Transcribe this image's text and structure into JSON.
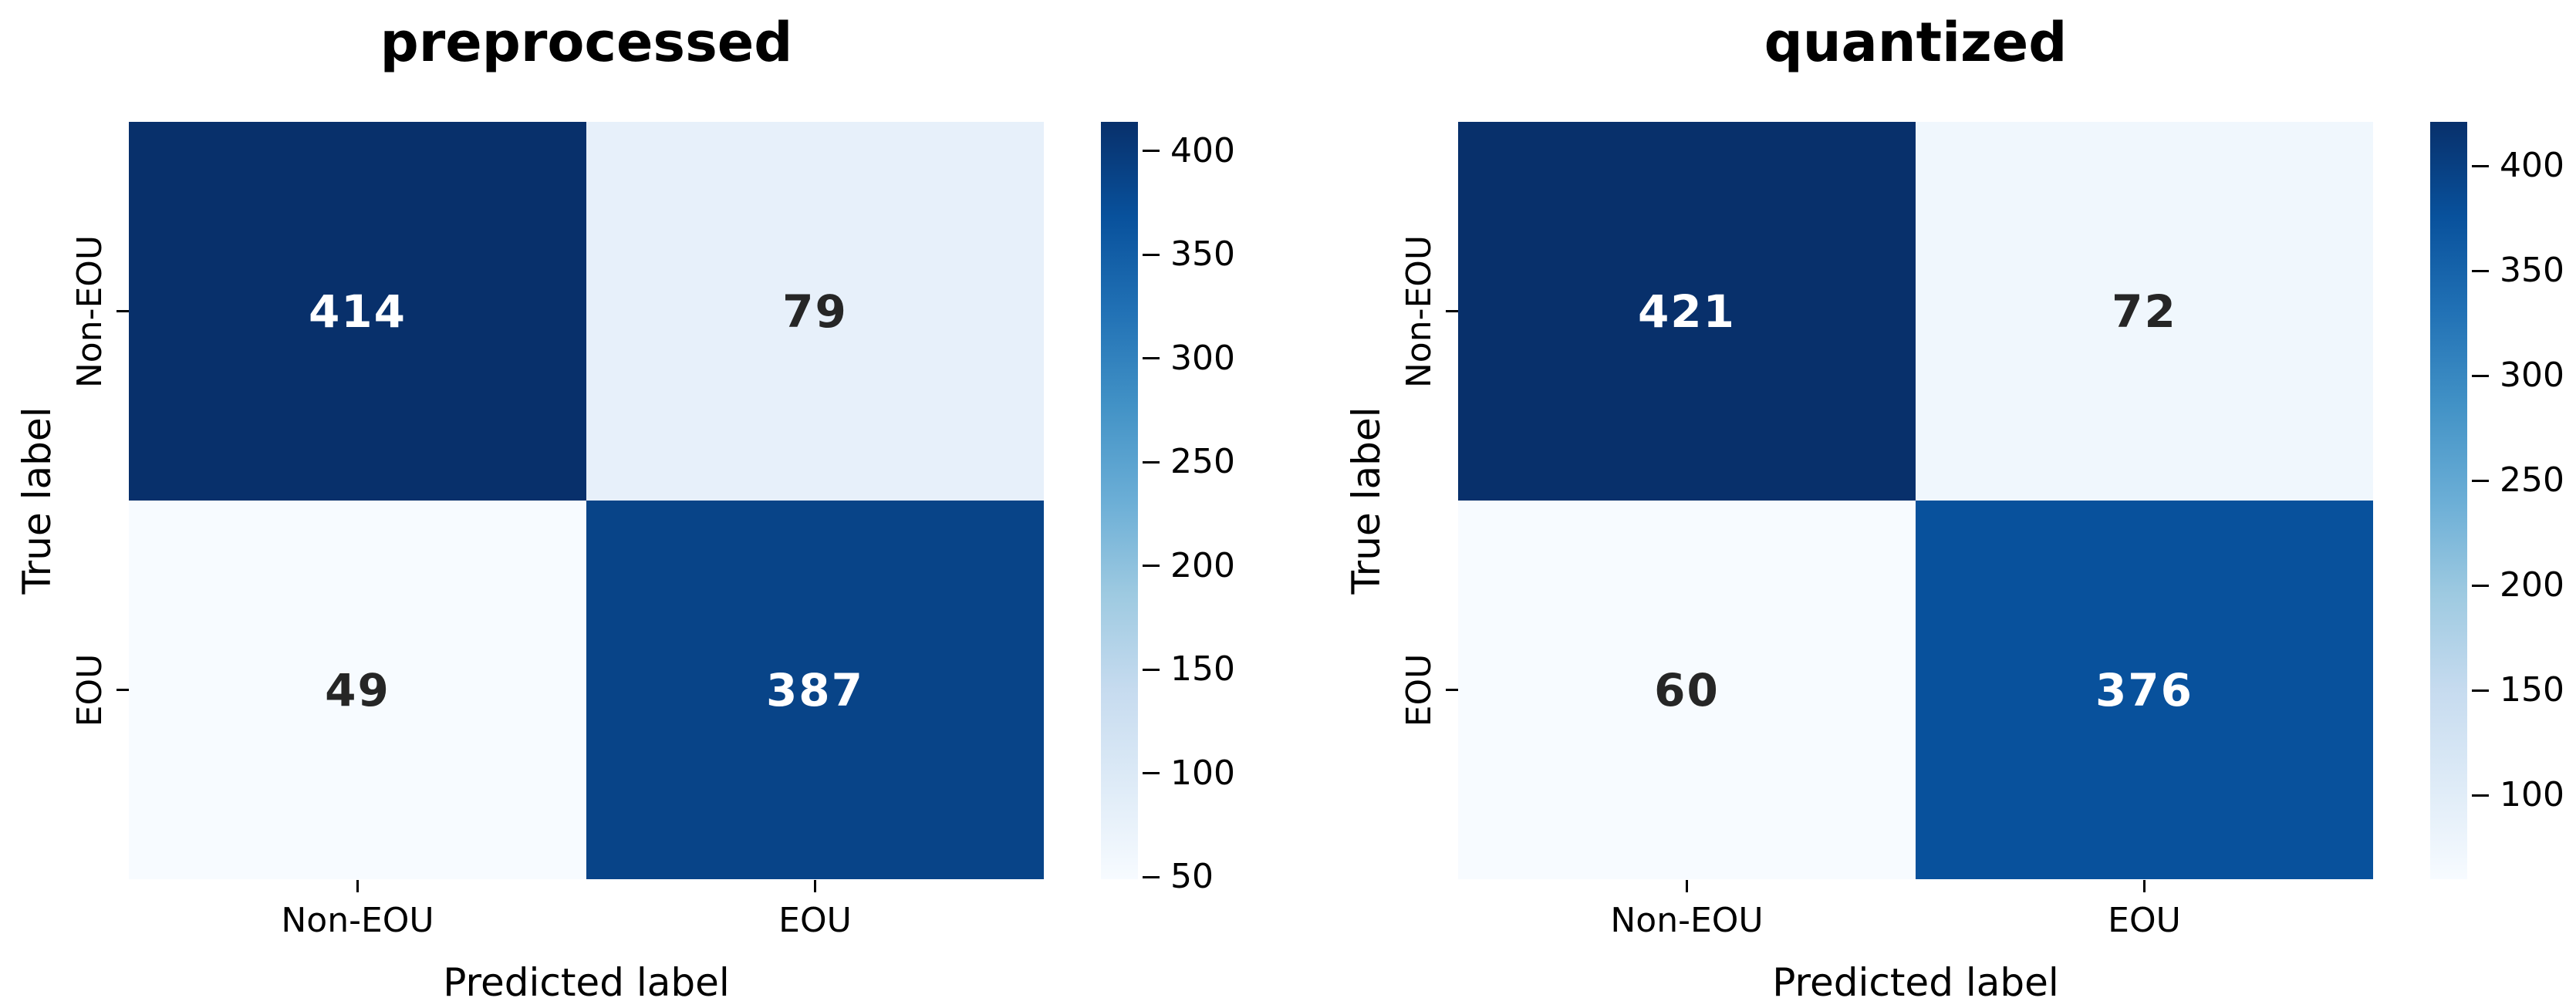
{
  "figure": {
    "background": "#ffffff",
    "text_color": "#000000"
  },
  "chart_data": [
    {
      "type": "heatmap",
      "title": "preprocessed",
      "xlabel": "Predicted label",
      "ylabel": "True label",
      "x_tick_labels": [
        "Non-EOU",
        "EOU"
      ],
      "y_tick_labels": [
        "Non-EOU",
        "EOU"
      ],
      "matrix": [
        [
          414,
          79
        ],
        [
          49,
          387
        ]
      ],
      "cell_colors": [
        [
          "#08306b",
          "#e7f0fa"
        ],
        [
          "#f7fbff",
          "#084488"
        ]
      ],
      "cell_text_colors": [
        [
          "#ffffff",
          "#262626"
        ],
        [
          "#262626",
          "#ffffff"
        ]
      ],
      "vmin": 49,
      "vmax": 414,
      "colorbar_ticks": [
        400,
        350,
        300,
        250,
        200,
        150,
        100,
        50
      ],
      "colormap_name": "Blues",
      "colormap_stops": [
        "#f7fbff",
        "#deebf7",
        "#c6dbef",
        "#9ecae1",
        "#6baed6",
        "#4292c6",
        "#2171b5",
        "#08519c",
        "#08306b"
      ],
      "grid": false,
      "legend": "colorbar-right"
    },
    {
      "type": "heatmap",
      "title": "quantized",
      "xlabel": "Predicted label",
      "ylabel": "True label",
      "x_tick_labels": [
        "Non-EOU",
        "EOU"
      ],
      "y_tick_labels": [
        "Non-EOU",
        "EOU"
      ],
      "matrix": [
        [
          421,
          72
        ],
        [
          60,
          376
        ]
      ],
      "cell_colors": [
        [
          "#08306b",
          "#f0f7fd"
        ],
        [
          "#f7fbff",
          "#08519c"
        ]
      ],
      "cell_text_colors": [
        [
          "#ffffff",
          "#262626"
        ],
        [
          "#262626",
          "#ffffff"
        ]
      ],
      "vmin": 60,
      "vmax": 421,
      "colorbar_ticks": [
        400,
        350,
        300,
        250,
        200,
        150,
        100
      ],
      "colormap_name": "Blues",
      "colormap_stops": [
        "#f7fbff",
        "#deebf7",
        "#c6dbef",
        "#9ecae1",
        "#6baed6",
        "#4292c6",
        "#2171b5",
        "#08519c",
        "#08306b"
      ],
      "grid": false,
      "legend": "colorbar-right"
    }
  ]
}
